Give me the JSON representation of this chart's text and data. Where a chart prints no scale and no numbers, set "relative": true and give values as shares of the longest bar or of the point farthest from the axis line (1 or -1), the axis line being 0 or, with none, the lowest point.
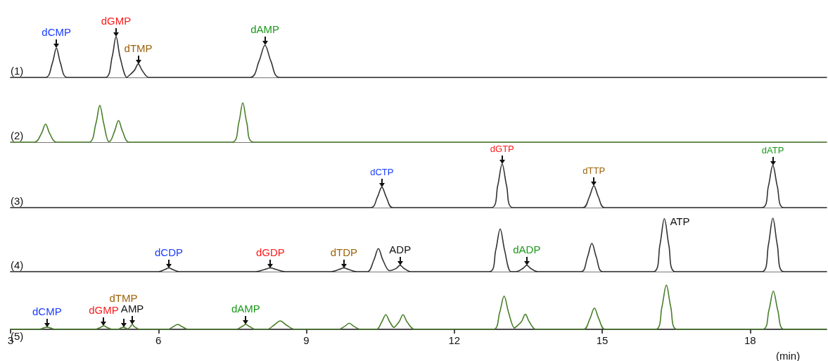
{
  "chart_data": [
    {
      "type": "line",
      "title": "(1)",
      "relative": true,
      "xlim": [
        3,
        19.55
      ],
      "tick_labels": false,
      "grid": false,
      "marker": "none",
      "line_style": "solid",
      "series": [
        {
          "color": "#333333",
          "x": [
            3,
            3.71,
            3.85,
            3.93,
            4.01,
            4.15,
            4.92,
            5.06,
            5.14,
            5.22,
            5.36,
            5.37,
            5.51,
            5.59,
            5.67,
            5.81,
            7.86,
            8.04,
            8.16,
            8.28,
            8.46,
            19.55
          ],
          "values": [
            0,
            0,
            0.36,
            0.72,
            0.36,
            0,
            0,
            0.5,
            1,
            0.5,
            0,
            0,
            0.17,
            0.33,
            0.17,
            0,
            0,
            0.4,
            0.79,
            0.4,
            0,
            0
          ]
        }
      ],
      "annotations": [
        {
          "text": "dCMP",
          "x": 3.93,
          "y": 0.72
        },
        {
          "text": "dGMP",
          "x": 5.14,
          "y": 1
        },
        {
          "text": "dTMP",
          "x": 5.59,
          "y": 0.33
        },
        {
          "text": "dAMP",
          "x": 8.16,
          "y": 0.79
        }
      ]
    },
    {
      "type": "line",
      "title": "(2)",
      "relative": true,
      "xlim": [
        3,
        19.55
      ],
      "tick_labels": false,
      "grid": false,
      "marker": "none",
      "line_style": "solid",
      "series": [
        {
          "color": "#4a7f2a",
          "x": [
            3,
            3.49,
            3.63,
            3.71,
            3.79,
            3.93,
            4.59,
            4.73,
            4.81,
            4.89,
            4.99,
            5.01,
            5.11,
            5.19,
            5.27,
            5.41,
            7.49,
            7.63,
            7.71,
            7.79,
            7.93,
            19.55
          ],
          "values": [
            0,
            0,
            0.23,
            0.46,
            0.23,
            0,
            0,
            0.47,
            0.93,
            0.47,
            0.02,
            0.02,
            0.28,
            0.55,
            0.28,
            0,
            0,
            0.5,
            1,
            0.5,
            0,
            0
          ]
        }
      ]
    },
    {
      "type": "line",
      "title": "(3)",
      "relative": true,
      "xlim": [
        3,
        19.55
      ],
      "tick_labels": false,
      "grid": false,
      "marker": "none",
      "line_style": "solid",
      "series": [
        {
          "color": "#333333",
          "x": [
            3,
            10.31,
            10.44,
            10.53,
            10.62,
            10.75,
            12.75,
            12.88,
            12.97,
            13.06,
            13.19,
            14.61,
            14.74,
            14.83,
            14.92,
            15.05,
            18.24,
            18.37,
            18.46,
            18.55,
            18.68,
            19.55
          ],
          "values": [
            0,
            0,
            0.24,
            0.47,
            0.24,
            0,
            0,
            0.5,
            1,
            0.5,
            0,
            0,
            0.25,
            0.5,
            0.25,
            0,
            0,
            0.49,
            0.97,
            0.49,
            0,
            0
          ]
        }
      ],
      "annotations": [
        {
          "text": "dCTP",
          "x": 10.53,
          "y": 0.47
        },
        {
          "text": "dGTP",
          "x": 12.97,
          "y": 1
        },
        {
          "text": "dTTP",
          "x": 14.83,
          "y": 0.5
        },
        {
          "text": "dATP",
          "x": 18.46,
          "y": 0.97
        }
      ]
    },
    {
      "type": "line",
      "title": "(4)",
      "relative": true,
      "xlim": [
        3,
        19.55
      ],
      "tick_labels": false,
      "grid": false,
      "marker": "none",
      "line_style": "solid",
      "series": [
        {
          "color": "#333333",
          "x": [
            3,
            6.0,
            6.13,
            6.21,
            6.29,
            6.42,
            7.97,
            8.15,
            8.27,
            8.39,
            8.57,
            9.5,
            9.66,
            9.76,
            9.86,
            10.02,
            10.24,
            10.37,
            10.46,
            10.55,
            10.68,
            10.7,
            10.82,
            10.9,
            10.98,
            11.12,
            12.71,
            12.84,
            12.93,
            13.02,
            13.15,
            13.25,
            13.39,
            13.47,
            13.55,
            13.69,
            14.57,
            14.7,
            14.79,
            14.88,
            15.01,
            16.04,
            16.17,
            16.26,
            16.35,
            16.48,
            18.24,
            18.37,
            18.46,
            18.55,
            18.68,
            19.55
          ],
          "values": [
            0,
            0,
            0.04,
            0.07,
            0.04,
            0,
            0,
            0.04,
            0.07,
            0.04,
            0,
            0,
            0.04,
            0.07,
            0.04,
            0,
            0,
            0.22,
            0.43,
            0.22,
            0.02,
            0.02,
            0.06,
            0.12,
            0.06,
            0,
            0,
            0.4,
            0.8,
            0.4,
            0,
            0,
            0.06,
            0.12,
            0.06,
            0,
            0,
            0.27,
            0.53,
            0.27,
            0,
            0,
            0.5,
            0.99,
            0.5,
            0,
            0,
            0.5,
            1,
            0.5,
            0,
            0
          ]
        }
      ],
      "annotations": [
        {
          "text": "dCDP",
          "x": 6.21,
          "y": 0.07
        },
        {
          "text": "dGDP",
          "x": 8.27,
          "y": 0.07
        },
        {
          "text": "dTDP",
          "x": 9.76,
          "y": 0.07
        },
        {
          "text": "ADP",
          "x": 10.9,
          "y": 0.12
        },
        {
          "text": "dADP",
          "x": 13.47,
          "y": 0.12
        },
        {
          "text": "ATP",
          "x": 16.26,
          "y": 0.99
        }
      ]
    },
    {
      "type": "line",
      "title": "(5)",
      "relative": true,
      "xlim": [
        3,
        19.55
      ],
      "xticks": [
        3,
        6,
        9,
        12,
        15,
        18
      ],
      "xlabel": "(min)",
      "tick_labels": "x",
      "grid": false,
      "marker": "none",
      "line_style": "solid",
      "series": [
        {
          "color": "#4a7f2a",
          "x": [
            3,
            3.56,
            3.67,
            3.74,
            3.81,
            3.92,
            4.71,
            4.82,
            4.89,
            4.96,
            5.07,
            5.17,
            5.24,
            5.29,
            5.33,
            5.38,
            5.39,
            5.43,
            5.47,
            5.51,
            5.63,
            6.19,
            6.3,
            6.39,
            6.48,
            6.61,
            7.57,
            7.69,
            7.77,
            7.85,
            7.97,
            8.2,
            8.35,
            8.47,
            8.59,
            8.77,
            9.65,
            9.78,
            9.87,
            9.96,
            10.1,
            10.42,
            10.53,
            10.61,
            10.69,
            10.78,
            10.79,
            10.88,
            10.96,
            11.04,
            11.2,
            12.79,
            12.92,
            13.01,
            13.1,
            13.22,
            13.23,
            13.36,
            13.44,
            13.52,
            13.66,
            14.62,
            14.75,
            14.84,
            14.93,
            15.06,
            16.08,
            16.21,
            16.3,
            16.39,
            16.52,
            18.25,
            18.38,
            18.47,
            18.56,
            18.69,
            19.55
          ],
          "values": [
            0,
            0,
            0.03,
            0.05,
            0.03,
            0,
            0,
            0.04,
            0.08,
            0.04,
            0,
            0,
            0.03,
            0.05,
            0.03,
            0.01,
            0.01,
            0.06,
            0.11,
            0.06,
            0,
            0,
            0.06,
            0.11,
            0.06,
            0,
            0,
            0.06,
            0.11,
            0.06,
            0,
            0,
            0.1,
            0.19,
            0.1,
            0,
            0,
            0.07,
            0.14,
            0.07,
            0,
            0,
            0.17,
            0.33,
            0.17,
            0.04,
            0.04,
            0.17,
            0.33,
            0.17,
            0,
            0,
            0.38,
            0.75,
            0.38,
            0.03,
            0.03,
            0.17,
            0.34,
            0.17,
            0,
            0,
            0.24,
            0.48,
            0.24,
            0,
            0,
            0.5,
            1,
            0.5,
            0,
            0,
            0.43,
            0.86,
            0.43,
            0,
            0
          ]
        }
      ],
      "annotations": [
        {
          "text": "dCMP",
          "x": 3.74,
          "y": 0.05
        },
        {
          "text": "dGMP",
          "x": 4.89,
          "y": 0.08
        },
        {
          "text": "dTMP",
          "x": 5.29,
          "y": 0.05
        },
        {
          "text": "AMP",
          "x": 5.47,
          "y": 0.11
        },
        {
          "text": "dAMP",
          "x": 7.77,
          "y": 0.11
        }
      ]
    }
  ]
}
